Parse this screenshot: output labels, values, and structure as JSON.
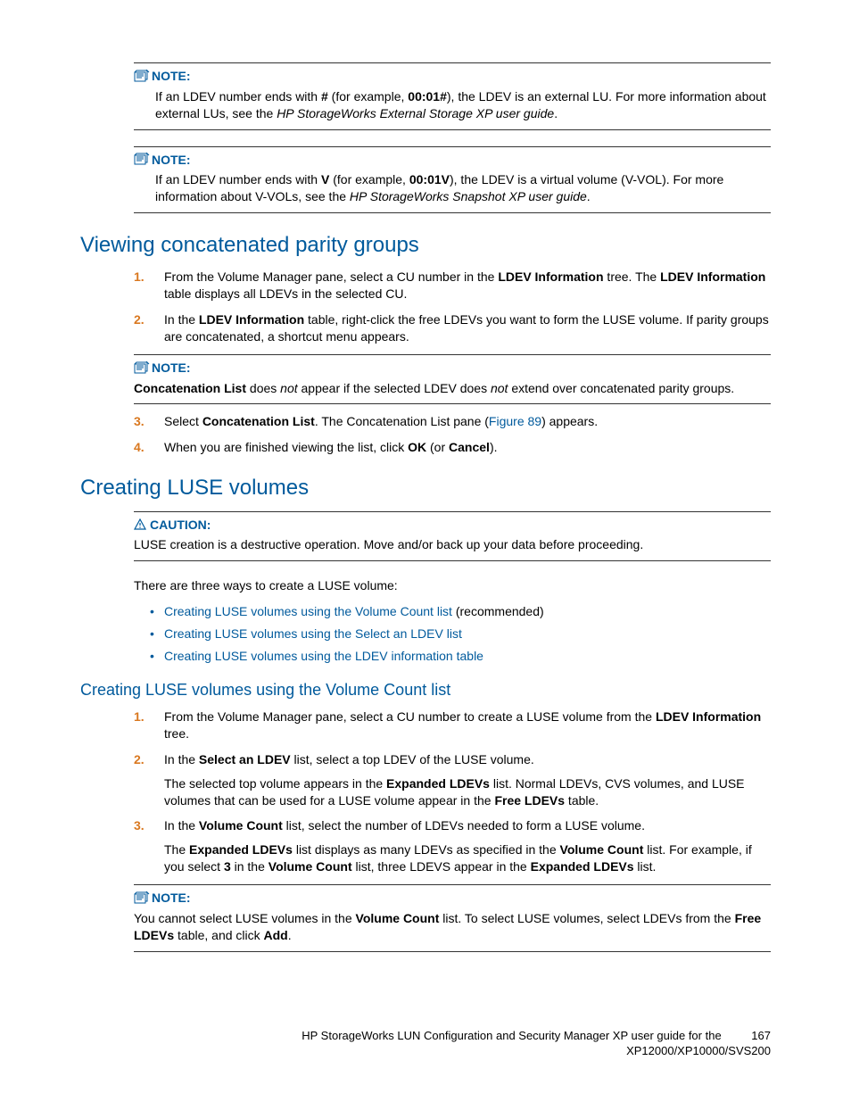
{
  "boxes": {
    "note1": {
      "label": "NOTE:",
      "body_parts": [
        {
          "t": "plain",
          "v": "If an LDEV number ends with "
        },
        {
          "t": "bold",
          "v": "#"
        },
        {
          "t": "plain",
          "v": " (for example, "
        },
        {
          "t": "bold",
          "v": "00:01#"
        },
        {
          "t": "plain",
          "v": "), the LDEV is an external LU. For more information about external LUs, see the "
        },
        {
          "t": "italic",
          "v": "HP StorageWorks External Storage XP user guide"
        },
        {
          "t": "plain",
          "v": "."
        }
      ]
    },
    "note2": {
      "label": "NOTE:",
      "body_parts": [
        {
          "t": "plain",
          "v": "If an LDEV number ends with "
        },
        {
          "t": "bold",
          "v": "V"
        },
        {
          "t": "plain",
          "v": " (for example, "
        },
        {
          "t": "bold",
          "v": "00:01V"
        },
        {
          "t": "plain",
          "v": "), the LDEV is a virtual volume (V-VOL). For more information about V-VOLs, see the "
        },
        {
          "t": "italic",
          "v": "HP StorageWorks Snapshot XP user guide"
        },
        {
          "t": "plain",
          "v": "."
        }
      ]
    },
    "note3": {
      "label": "NOTE:",
      "body_parts": [
        {
          "t": "bold",
          "v": "Concatenation List"
        },
        {
          "t": "plain",
          "v": " does "
        },
        {
          "t": "italic",
          "v": "not"
        },
        {
          "t": "plain",
          "v": " appear if the selected LDEV does "
        },
        {
          "t": "italic",
          "v": "not"
        },
        {
          "t": "plain",
          "v": " extend over concatenated parity groups."
        }
      ]
    },
    "caution1": {
      "label": "CAUTION:",
      "body_parts": [
        {
          "t": "plain",
          "v": "LUSE creation is a destructive operation.  Move and/or back up your data before proceeding."
        }
      ]
    },
    "note4": {
      "label": "NOTE:",
      "body_parts": [
        {
          "t": "plain",
          "v": "You cannot select LUSE volumes in the "
        },
        {
          "t": "bold",
          "v": "Volume Count"
        },
        {
          "t": "plain",
          "v": " list.  To select LUSE volumes, select LDEVs from the "
        },
        {
          "t": "bold",
          "v": "Free LDEVs"
        },
        {
          "t": "plain",
          "v": " table, and click "
        },
        {
          "t": "bold",
          "v": "Add"
        },
        {
          "t": "plain",
          "v": "."
        }
      ]
    }
  },
  "sections": {
    "h1": "Viewing concatenated parity groups",
    "h2": "Creating LUSE volumes",
    "h3": "Creating LUSE volumes using the Volume Count list"
  },
  "viewing_steps": [
    {
      "num": "1.",
      "parts": [
        {
          "t": "plain",
          "v": "From the Volume Manager pane, select a CU number in the "
        },
        {
          "t": "bold",
          "v": "LDEV Information"
        },
        {
          "t": "plain",
          "v": " tree.  The "
        },
        {
          "t": "bold",
          "v": "LDEV Information"
        },
        {
          "t": "plain",
          "v": " table displays all LDEVs in the selected CU."
        }
      ]
    },
    {
      "num": "2.",
      "parts": [
        {
          "t": "plain",
          "v": "In the "
        },
        {
          "t": "bold",
          "v": "LDEV Information"
        },
        {
          "t": "plain",
          "v": " table, right-click the free LDEVs you want to form the LUSE volume.  If parity groups are concatenated, a shortcut menu appears."
        }
      ]
    }
  ],
  "viewing_steps_after": [
    {
      "num": "3.",
      "parts": [
        {
          "t": "plain",
          "v": "Select "
        },
        {
          "t": "bold",
          "v": "Concatenation List"
        },
        {
          "t": "plain",
          "v": ".  The Concatenation List pane ("
        },
        {
          "t": "link",
          "v": "Figure 89"
        },
        {
          "t": "plain",
          "v": ") appears."
        }
      ]
    },
    {
      "num": "4.",
      "parts": [
        {
          "t": "plain",
          "v": "When you are finished viewing the list, click "
        },
        {
          "t": "bold",
          "v": "OK"
        },
        {
          "t": "plain",
          "v": " (or "
        },
        {
          "t": "bold",
          "v": "Cancel"
        },
        {
          "t": "plain",
          "v": ")."
        }
      ]
    }
  ],
  "creating_intro": "There are three ways to create a LUSE volume:",
  "creating_bullets": [
    {
      "link": "Creating LUSE volumes using the Volume Count list",
      "suffix": " (recommended)"
    },
    {
      "link": "Creating LUSE volumes using the Select an LDEV list",
      "suffix": ""
    },
    {
      "link": "Creating LUSE volumes using the LDEV information table",
      "suffix": ""
    }
  ],
  "volcount_steps": [
    {
      "num": "1.",
      "parts": [
        {
          "t": "plain",
          "v": "From the Volume Manager pane, select a CU number to create a LUSE volume from the "
        },
        {
          "t": "bold",
          "v": "LDEV Information"
        },
        {
          "t": "plain",
          "v": " tree."
        }
      ]
    },
    {
      "num": "2.",
      "parts": [
        {
          "t": "plain",
          "v": "In the "
        },
        {
          "t": "bold",
          "v": "Select an LDEV"
        },
        {
          "t": "plain",
          "v": " list, select a top LDEV of the LUSE volume."
        }
      ],
      "extra": [
        {
          "t": "plain",
          "v": "The selected top volume appears in the "
        },
        {
          "t": "bold",
          "v": "Expanded LDEVs"
        },
        {
          "t": "plain",
          "v": " list.  Normal LDEVs, CVS volumes, and LUSE volumes that can be used for a LUSE volume appear in the "
        },
        {
          "t": "bold",
          "v": "Free LDEVs"
        },
        {
          "t": "plain",
          "v": " table."
        }
      ]
    },
    {
      "num": "3.",
      "parts": [
        {
          "t": "plain",
          "v": "In the "
        },
        {
          "t": "bold",
          "v": "Volume Count"
        },
        {
          "t": "plain",
          "v": " list, select the number of LDEVs needed to form a LUSE volume."
        }
      ],
      "extra": [
        {
          "t": "plain",
          "v": "The "
        },
        {
          "t": "bold",
          "v": "Expanded LDEVs"
        },
        {
          "t": "plain",
          "v": " list displays as many LDEVs as specified in the "
        },
        {
          "t": "bold",
          "v": "Volume Count"
        },
        {
          "t": "plain",
          "v": " list.  For example, if you select "
        },
        {
          "t": "bold",
          "v": "3"
        },
        {
          "t": "plain",
          "v": " in the "
        },
        {
          "t": "bold",
          "v": "Volume Count"
        },
        {
          "t": "plain",
          "v": " list, three LDEVS appear in the "
        },
        {
          "t": "bold",
          "v": "Expanded LDEVs"
        },
        {
          "t": "plain",
          "v": " list."
        }
      ]
    }
  ],
  "footer": {
    "line1": "HP StorageWorks LUN Configuration and Security Manager XP user guide for the",
    "line2": "XP12000/XP10000/SVS200",
    "page": "167"
  }
}
